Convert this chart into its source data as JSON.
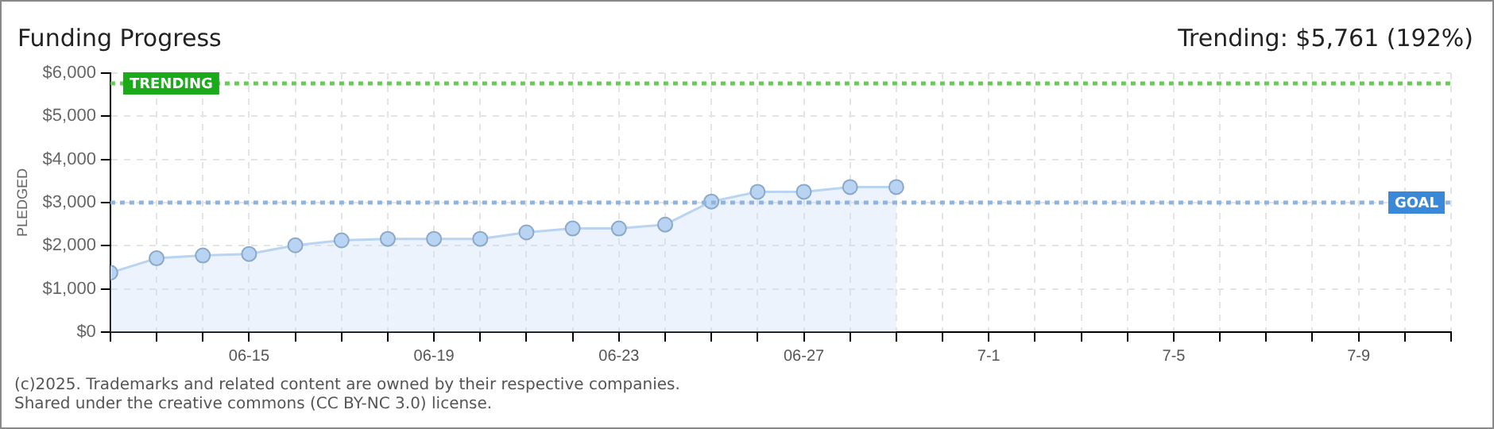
{
  "chart_data": {
    "type": "area",
    "title": "Funding Progress",
    "subtitle": "Trending: $5,761 (192%)",
    "ylabel": "PLEDGED",
    "annotations": [
      "(c)2025. Trademarks and related content are owned by their respective companies.",
      "Shared under the creative commons (CC BY-NC 3.0) license."
    ],
    "x": [
      "2025-06-12",
      "2025-06-13",
      "2025-06-14",
      "2025-06-15",
      "2025-06-16",
      "2025-06-17",
      "2025-06-18",
      "2025-06-19",
      "2025-06-20",
      "2025-06-21",
      "2025-06-22",
      "2025-06-23",
      "2025-06-24",
      "2025-06-25",
      "2025-06-26",
      "2025-06-27",
      "2025-06-28",
      "2025-06-29"
    ],
    "series": [
      {
        "color": "#b8d4f2",
        "values": [
          1375,
          1710,
          1775,
          1810,
          2010,
          2125,
          2160,
          2160,
          2160,
          2310,
          2400,
          2400,
          2490,
          3025,
          3250,
          3250,
          3360,
          3360
        ]
      }
    ],
    "xlim": [
      "2025-06-12",
      "2025-07-11"
    ],
    "xticks": [
      {
        "value": "2025-06-15",
        "label": "06-15"
      },
      {
        "value": "2025-06-19",
        "label": "06-19"
      },
      {
        "value": "2025-06-23",
        "label": "06-23"
      },
      {
        "value": "2025-06-27",
        "label": "06-27"
      },
      {
        "value": "2025-07-01",
        "label": "7-1"
      },
      {
        "value": "2025-07-05",
        "label": "7-5"
      },
      {
        "value": "2025-07-09",
        "label": "7-9"
      }
    ],
    "ylim": [
      0,
      6000
    ],
    "yticks": [
      {
        "value": 0,
        "label": "$0"
      },
      {
        "value": 1000,
        "label": "$1,000"
      },
      {
        "value": 2000,
        "label": "$2,000"
      },
      {
        "value": 3000,
        "label": "$3,000"
      },
      {
        "value": 4000,
        "label": "$4,000"
      },
      {
        "value": 5000,
        "label": "$5,000"
      },
      {
        "value": 6000,
        "label": "$6,000"
      }
    ],
    "ref_lines": [
      {
        "axis": "y",
        "value": 5761,
        "label": "TRENDING",
        "color": "#66cc55",
        "line_style": "dotted"
      },
      {
        "axis": "y",
        "value": 3000,
        "label": "GOAL",
        "color": "#8fb4e0",
        "line_style": "dotted"
      }
    ],
    "grid": true,
    "marker": "circle",
    "line_style": "solid",
    "legend": false
  }
}
